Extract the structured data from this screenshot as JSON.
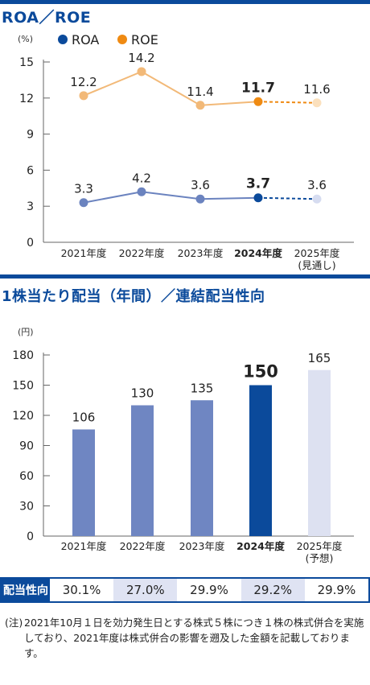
{
  "section1_title": "ROA／ROE",
  "section2_title": "1株当たり配当（年間）／連結配当性向",
  "chart_data": [
    {
      "type": "line",
      "unit_label": "(%)",
      "categories": [
        "2021年度",
        "2022年度",
        "2023年度",
        "2024年度",
        "2025年度"
      ],
      "category_sublabels": [
        "",
        "",
        "",
        "",
        "(見通し)"
      ],
      "highlight_index": 3,
      "forecast_index": 4,
      "ylim": [
        0,
        15
      ],
      "yticks": [
        0,
        3,
        6,
        9,
        12,
        15
      ],
      "series": [
        {
          "name": "ROA",
          "values": [
            3.3,
            4.2,
            3.6,
            3.7,
            3.6
          ],
          "labels": [
            "3.3",
            "4.2",
            "3.6",
            "3.7",
            "3.6"
          ],
          "color": "#6b83bf",
          "legend_color": "#0b4a9b",
          "highlight_color": "#0b4a9b",
          "forecast_color": "#d6dcf0"
        },
        {
          "name": "ROE",
          "values": [
            12.2,
            14.2,
            11.4,
            11.7,
            11.6
          ],
          "labels": [
            "12.2",
            "14.2",
            "11.4",
            "11.7",
            "11.6"
          ],
          "color": "#f2b978",
          "legend_color": "#ef8a12",
          "highlight_color": "#ef8a12",
          "forecast_color": "#fbe0bd"
        }
      ]
    },
    {
      "type": "bar",
      "unit_label": "(円)",
      "categories": [
        "2021年度",
        "2022年度",
        "2023年度",
        "2024年度",
        "2025年度"
      ],
      "category_sublabels": [
        "",
        "",
        "",
        "",
        "(予想)"
      ],
      "values": [
        106,
        130,
        135,
        150,
        165
      ],
      "labels": [
        "106",
        "130",
        "135",
        "150",
        "165"
      ],
      "highlight_index": 3,
      "forecast_index": 4,
      "ylim": [
        0,
        180
      ],
      "yticks": [
        0,
        30,
        60,
        90,
        120,
        150,
        180
      ],
      "colors": {
        "normal": "#6f86c2",
        "highlight": "#0b4a9b",
        "forecast": "#dde1f1"
      }
    }
  ],
  "payout": {
    "label": "配当性向",
    "values": [
      "30.1%",
      "27.0%",
      "29.9%",
      "29.2%",
      "29.9%"
    ]
  },
  "note": {
    "prefix": "(注)",
    "text": "2021年10月１日を効力発生日とする株式５株につき１株の株式併合を実施しており、2021年度は株式併合の影響を遡及した金額を記載しております。"
  }
}
